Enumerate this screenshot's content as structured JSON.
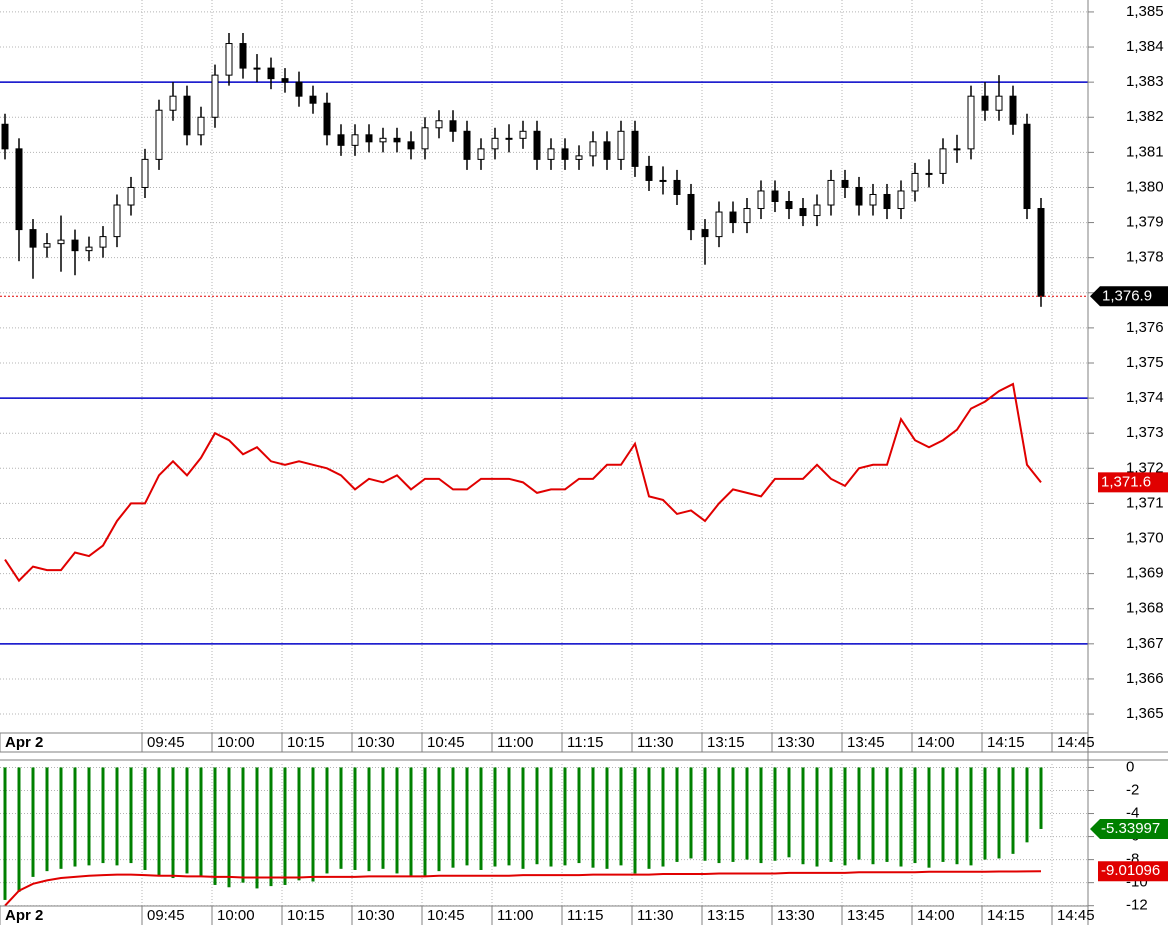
{
  "chart_data": [
    {
      "type": "candlestick",
      "x_labels": [
        "Apr 2",
        "09:45",
        "10:00",
        "10:15",
        "10:30",
        "10:45",
        "11:00",
        "11:15",
        "11:30",
        "13:15",
        "13:30",
        "13:45",
        "14:00",
        "14:15",
        "14:45"
      ],
      "ylim": [
        1364.46,
        1385.34
      ],
      "yticks": [
        {
          "value": 1385,
          "label": "1,385"
        },
        {
          "value": 1384,
          "label": "1,384"
        },
        {
          "value": 1383,
          "label": "1,383"
        },
        {
          "value": 1382,
          "label": "1,382"
        },
        {
          "value": 1381,
          "label": "1,381"
        },
        {
          "value": 1380,
          "label": "1,380"
        },
        {
          "value": 1379,
          "label": "1,379"
        },
        {
          "value": 1378,
          "label": "1,378"
        },
        {
          "value": 1377,
          "label": "1,377"
        },
        {
          "value": 1376,
          "label": "1,376"
        },
        {
          "value": 1375,
          "label": "1,375"
        },
        {
          "value": 1374,
          "label": "1,374"
        },
        {
          "value": 1373,
          "label": "1,373"
        },
        {
          "value": 1372,
          "label": "1,372"
        },
        {
          "value": 1371,
          "label": "1,371"
        },
        {
          "value": 1370,
          "label": "1,370"
        },
        {
          "value": 1369,
          "label": "1,369"
        },
        {
          "value": 1368,
          "label": "1,368"
        },
        {
          "value": 1367,
          "label": "1,367"
        },
        {
          "value": 1366,
          "label": "1,366"
        },
        {
          "value": 1365,
          "label": "1,365"
        }
      ],
      "grid": true,
      "hlines": [
        1383,
        1374,
        1367
      ],
      "hline_color": "#0000c8",
      "series": [
        {
          "type": "candlestick",
          "up_color": "#ffffff",
          "down_color": "#000000",
          "last_label": "1,376.9",
          "last_line_color": "#e00000",
          "open": [
            1381.8,
            1381.1,
            1378.8,
            1378.3,
            1378.4,
            1378.5,
            1378.2,
            1378.3,
            1378.6,
            1379.5,
            1380.0,
            1380.8,
            1382.2,
            1382.6,
            1381.5,
            1382.0,
            1383.2,
            1384.1,
            1383.4,
            1383.4,
            1383.1,
            1383.0,
            1382.6,
            1382.4,
            1381.5,
            1381.2,
            1381.5,
            1381.3,
            1381.4,
            1381.3,
            1381.1,
            1381.7,
            1381.9,
            1381.6,
            1380.8,
            1381.1,
            1381.4,
            1381.4,
            1381.6,
            1380.8,
            1381.1,
            1380.8,
            1380.9,
            1381.3,
            1380.8,
            1381.6,
            1380.6,
            1380.2,
            1380.2,
            1379.8,
            1378.8,
            1378.6,
            1379.3,
            1379.0,
            1379.4,
            1379.9,
            1379.6,
            1379.4,
            1379.2,
            1379.5,
            1380.2,
            1380.0,
            1379.5,
            1379.8,
            1379.4,
            1379.9,
            1380.4,
            1380.4,
            1381.1,
            1381.1,
            1382.6,
            1382.2,
            1382.6,
            1381.8,
            1379.4
          ],
          "high": [
            1382.1,
            1381.4,
            1379.1,
            1378.7,
            1379.2,
            1378.8,
            1378.6,
            1378.9,
            1379.8,
            1380.3,
            1381.1,
            1382.5,
            1383.0,
            1382.9,
            1382.3,
            1383.5,
            1384.4,
            1384.4,
            1383.8,
            1383.7,
            1383.4,
            1383.3,
            1382.9,
            1382.7,
            1381.8,
            1381.8,
            1381.8,
            1381.7,
            1381.7,
            1381.6,
            1382.0,
            1382.2,
            1382.2,
            1381.9,
            1381.4,
            1381.7,
            1381.8,
            1381.9,
            1381.9,
            1381.4,
            1381.4,
            1381.2,
            1381.6,
            1381.6,
            1381.9,
            1381.9,
            1380.9,
            1380.6,
            1380.5,
            1380.1,
            1379.1,
            1379.6,
            1379.6,
            1379.7,
            1380.2,
            1380.2,
            1379.9,
            1379.7,
            1379.8,
            1380.5,
            1380.5,
            1380.3,
            1380.1,
            1380.1,
            1380.2,
            1380.7,
            1380.8,
            1381.4,
            1381.5,
            1382.9,
            1383.0,
            1383.2,
            1382.9,
            1382.1,
            1379.7
          ],
          "low": [
            1380.8,
            1377.9,
            1377.4,
            1378.0,
            1377.6,
            1377.5,
            1377.9,
            1378.0,
            1378.3,
            1379.2,
            1379.7,
            1380.5,
            1381.9,
            1381.2,
            1381.2,
            1381.7,
            1382.9,
            1383.1,
            1383.0,
            1382.8,
            1382.7,
            1382.3,
            1382.1,
            1381.2,
            1380.9,
            1380.9,
            1381.0,
            1381.0,
            1381.0,
            1380.8,
            1380.8,
            1381.4,
            1381.3,
            1380.5,
            1380.5,
            1380.8,
            1381.0,
            1381.1,
            1380.5,
            1380.5,
            1380.5,
            1380.5,
            1380.6,
            1380.5,
            1380.5,
            1380.3,
            1379.9,
            1379.8,
            1379.5,
            1378.5,
            1377.8,
            1378.3,
            1378.7,
            1378.7,
            1379.1,
            1379.3,
            1379.1,
            1378.9,
            1378.9,
            1379.2,
            1379.7,
            1379.2,
            1379.2,
            1379.1,
            1379.1,
            1379.6,
            1380.0,
            1380.1,
            1380.7,
            1380.8,
            1381.9,
            1381.9,
            1381.5,
            1379.1,
            1376.6
          ],
          "close": [
            1381.1,
            1378.8,
            1378.3,
            1378.4,
            1378.5,
            1378.2,
            1378.3,
            1378.6,
            1379.5,
            1380.0,
            1380.8,
            1382.2,
            1382.6,
            1381.5,
            1382.0,
            1383.2,
            1384.1,
            1383.4,
            1383.4,
            1383.1,
            1383.0,
            1382.6,
            1382.4,
            1381.5,
            1381.2,
            1381.5,
            1381.3,
            1381.4,
            1381.3,
            1381.1,
            1381.7,
            1381.9,
            1381.6,
            1380.8,
            1381.1,
            1381.4,
            1381.4,
            1381.6,
            1380.8,
            1381.1,
            1380.8,
            1380.9,
            1381.3,
            1380.8,
            1381.6,
            1380.6,
            1380.2,
            1380.2,
            1379.8,
            1378.8,
            1378.6,
            1379.3,
            1379.0,
            1379.4,
            1379.9,
            1379.6,
            1379.4,
            1379.2,
            1379.5,
            1380.2,
            1380.0,
            1379.5,
            1379.8,
            1379.4,
            1379.9,
            1380.4,
            1380.4,
            1381.1,
            1381.1,
            1382.6,
            1382.2,
            1382.6,
            1381.8,
            1379.4,
            1376.9
          ]
        },
        {
          "type": "line",
          "color": "#e00000",
          "last_label": "1,371.6",
          "values": [
            1369.4,
            1368.8,
            1369.2,
            1369.1,
            1369.1,
            1369.6,
            1369.5,
            1369.8,
            1370.5,
            1371.0,
            1371.0,
            1371.8,
            1372.2,
            1371.8,
            1372.3,
            1373.0,
            1372.8,
            1372.4,
            1372.6,
            1372.2,
            1372.1,
            1372.2,
            1372.1,
            1372.0,
            1371.8,
            1371.4,
            1371.7,
            1371.6,
            1371.8,
            1371.4,
            1371.7,
            1371.7,
            1371.4,
            1371.4,
            1371.7,
            1371.7,
            1371.7,
            1371.6,
            1371.3,
            1371.4,
            1371.4,
            1371.7,
            1371.7,
            1372.1,
            1372.1,
            1372.7,
            1371.2,
            1371.1,
            1370.7,
            1370.8,
            1370.5,
            1371.0,
            1371.4,
            1371.3,
            1371.2,
            1371.7,
            1371.7,
            1371.7,
            1372.1,
            1371.7,
            1371.5,
            1372.0,
            1372.1,
            1372.1,
            1373.4,
            1372.8,
            1372.6,
            1372.8,
            1373.1,
            1373.7,
            1373.9,
            1374.2,
            1374.4,
            1372.1,
            1371.6
          ]
        }
      ]
    },
    {
      "type": "bar",
      "ylim": [
        -12.2,
        0.3
      ],
      "yticks": [
        0,
        -2,
        -4,
        -6,
        -8,
        -10,
        -12
      ],
      "grid": true,
      "series": [
        {
          "type": "bar",
          "color": "#008000",
          "values": [
            -11.5,
            -10.8,
            -9.5,
            -9.0,
            -8.8,
            -8.6,
            -8.5,
            -8.3,
            -8.5,
            -8.3,
            -8.9,
            -9.4,
            -9.6,
            -9.2,
            -9.4,
            -10.2,
            -10.4,
            -10.0,
            -10.5,
            -10.3,
            -10.2,
            -9.8,
            -9.9,
            -9.2,
            -8.8,
            -8.9,
            -9.0,
            -8.8,
            -9.2,
            -9.4,
            -9.5,
            -9.0,
            -8.7,
            -8.5,
            -8.9,
            -8.6,
            -8.5,
            -8.8,
            -8.4,
            -8.6,
            -8.5,
            -8.3,
            -8.7,
            -8.8,
            -8.5,
            -9.2,
            -8.8,
            -8.6,
            -8.2,
            -7.9,
            -8.1,
            -8.3,
            -8.2,
            -8.0,
            -8.3,
            -8.1,
            -7.8,
            -8.4,
            -8.6,
            -8.2,
            -8.5,
            -8.0,
            -8.4,
            -8.2,
            -8.6,
            -8.3,
            -8.7,
            -8.2,
            -8.4,
            -8.5,
            -8.0,
            -7.9,
            -7.5,
            -6.5,
            -5.33997
          ]
        },
        {
          "type": "line",
          "color": "#e00000",
          "values": [
            -12.0,
            -10.7,
            -10.1,
            -9.8,
            -9.6,
            -9.5,
            -9.4,
            -9.35,
            -9.3,
            -9.3,
            -9.35,
            -9.4,
            -9.4,
            -9.45,
            -9.45,
            -9.5,
            -9.5,
            -9.55,
            -9.55,
            -9.55,
            -9.55,
            -9.55,
            -9.5,
            -9.5,
            -9.5,
            -9.5,
            -9.45,
            -9.45,
            -9.45,
            -9.45,
            -9.45,
            -9.4,
            -9.4,
            -9.4,
            -9.4,
            -9.4,
            -9.4,
            -9.35,
            -9.35,
            -9.35,
            -9.35,
            -9.35,
            -9.3,
            -9.3,
            -9.3,
            -9.3,
            -9.3,
            -9.25,
            -9.25,
            -9.25,
            -9.25,
            -9.2,
            -9.2,
            -9.2,
            -9.2,
            -9.2,
            -9.15,
            -9.15,
            -9.15,
            -9.15,
            -9.15,
            -9.1,
            -9.1,
            -9.1,
            -9.1,
            -9.1,
            -9.05,
            -9.05,
            -9.05,
            -9.05,
            -9.05,
            -9.03,
            -9.03,
            -9.02,
            -9.01096
          ]
        }
      ]
    }
  ]
}
